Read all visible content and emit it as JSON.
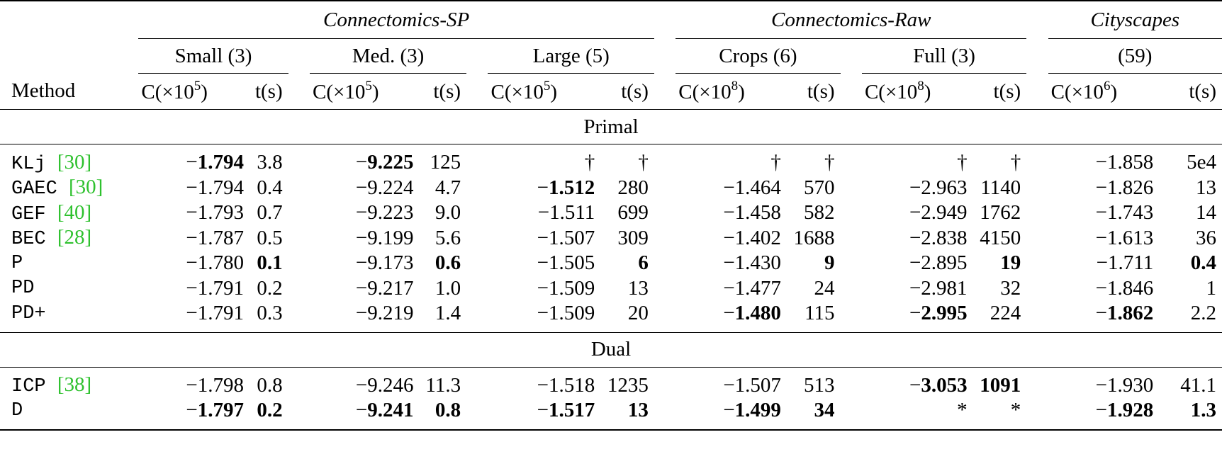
{
  "header": {
    "groups": [
      "Connectomics-SP",
      "Connectomics-Raw",
      "Cityscapes"
    ],
    "subgroups": [
      "Small (3)",
      "Med. (3)",
      "Large (5)",
      "Crops (6)",
      "Full (3)",
      "(59)"
    ],
    "method_label": "Method",
    "cost_prefix": "C(×10",
    "cost_suffix": ")",
    "exponents": [
      "5",
      "5",
      "5",
      "8",
      "8",
      "6"
    ],
    "time_label": "t(s)"
  },
  "sections": {
    "primal": "Primal",
    "dual": "Dual"
  },
  "primal_rows": [
    {
      "method": "KLj ",
      "cite": "[30]",
      "cells": [
        {
          "v": "−1.794",
          "b": "partial"
        },
        {
          "v": "3.8",
          "b": "no"
        },
        {
          "v": "−9.225",
          "b": "partial"
        },
        {
          "v": "125",
          "b": "no"
        },
        {
          "v": "†",
          "b": "no"
        },
        {
          "v": "†",
          "b": "no"
        },
        {
          "v": "†",
          "b": "no"
        },
        {
          "v": "†",
          "b": "no"
        },
        {
          "v": "†",
          "b": "no"
        },
        {
          "v": "†",
          "b": "no"
        },
        {
          "v": "−1.858",
          "b": "no"
        },
        {
          "v": "5e4",
          "b": "no"
        }
      ]
    },
    {
      "method": "GAEC ",
      "cite": "[30]",
      "cells": [
        {
          "v": "−1.794",
          "b": "no"
        },
        {
          "v": "0.4",
          "b": "no"
        },
        {
          "v": "−9.224",
          "b": "no"
        },
        {
          "v": "4.7",
          "b": "no"
        },
        {
          "v": "−1.512",
          "b": "partial"
        },
        {
          "v": "280",
          "b": "no"
        },
        {
          "v": "−1.464",
          "b": "no"
        },
        {
          "v": "570",
          "b": "no"
        },
        {
          "v": "−2.963",
          "b": "no"
        },
        {
          "v": "1140",
          "b": "no"
        },
        {
          "v": "−1.826",
          "b": "no"
        },
        {
          "v": "13",
          "b": "no"
        }
      ]
    },
    {
      "method": "GEF ",
      "cite": "[40]",
      "cells": [
        {
          "v": "−1.793",
          "b": "no"
        },
        {
          "v": "0.7",
          "b": "no"
        },
        {
          "v": "−9.223",
          "b": "no"
        },
        {
          "v": "9.0",
          "b": "no"
        },
        {
          "v": "−1.511",
          "b": "no"
        },
        {
          "v": "699",
          "b": "no"
        },
        {
          "v": "−1.458",
          "b": "no"
        },
        {
          "v": "582",
          "b": "no"
        },
        {
          "v": "−2.949",
          "b": "no"
        },
        {
          "v": "1762",
          "b": "no"
        },
        {
          "v": "−1.743",
          "b": "no"
        },
        {
          "v": "14",
          "b": "no"
        }
      ]
    },
    {
      "method": "BEC ",
      "cite": "[28]",
      "cells": [
        {
          "v": "−1.787",
          "b": "no"
        },
        {
          "v": "0.5",
          "b": "no"
        },
        {
          "v": "−9.199",
          "b": "no"
        },
        {
          "v": "5.6",
          "b": "no"
        },
        {
          "v": "−1.507",
          "b": "no"
        },
        {
          "v": "309",
          "b": "no"
        },
        {
          "v": "−1.402",
          "b": "no"
        },
        {
          "v": "1688",
          "b": "no"
        },
        {
          "v": "−2.838",
          "b": "no"
        },
        {
          "v": "4150",
          "b": "no"
        },
        {
          "v": "−1.613",
          "b": "no"
        },
        {
          "v": "36",
          "b": "no"
        }
      ]
    },
    {
      "method": "P",
      "cite": "",
      "cells": [
        {
          "v": "−1.780",
          "b": "no"
        },
        {
          "v": "0.1",
          "b": "full"
        },
        {
          "v": "−9.173",
          "b": "no"
        },
        {
          "v": "0.6",
          "b": "full"
        },
        {
          "v": "−1.505",
          "b": "no"
        },
        {
          "v": "6",
          "b": "full"
        },
        {
          "v": "−1.430",
          "b": "no"
        },
        {
          "v": "9",
          "b": "full"
        },
        {
          "v": "−2.895",
          "b": "no"
        },
        {
          "v": "19",
          "b": "full"
        },
        {
          "v": "−1.711",
          "b": "no"
        },
        {
          "v": "0.4",
          "b": "full"
        }
      ]
    },
    {
      "method": "PD",
      "cite": "",
      "cells": [
        {
          "v": "−1.791",
          "b": "no"
        },
        {
          "v": "0.2",
          "b": "no"
        },
        {
          "v": "−9.217",
          "b": "no"
        },
        {
          "v": "1.0",
          "b": "no"
        },
        {
          "v": "−1.509",
          "b": "no"
        },
        {
          "v": "13",
          "b": "no"
        },
        {
          "v": "−1.477",
          "b": "no"
        },
        {
          "v": "24",
          "b": "no"
        },
        {
          "v": "−2.981",
          "b": "no"
        },
        {
          "v": "32",
          "b": "no"
        },
        {
          "v": "−1.846",
          "b": "no"
        },
        {
          "v": "1",
          "b": "no"
        }
      ]
    },
    {
      "method": "PD+",
      "cite": "",
      "cells": [
        {
          "v": "−1.791",
          "b": "no"
        },
        {
          "v": "0.3",
          "b": "no"
        },
        {
          "v": "−9.219",
          "b": "no"
        },
        {
          "v": "1.4",
          "b": "no"
        },
        {
          "v": "−1.509",
          "b": "no"
        },
        {
          "v": "20",
          "b": "no"
        },
        {
          "v": "−1.480",
          "b": "partial"
        },
        {
          "v": "115",
          "b": "no"
        },
        {
          "v": "−2.995",
          "b": "partial"
        },
        {
          "v": "224",
          "b": "no"
        },
        {
          "v": "−1.862",
          "b": "partial"
        },
        {
          "v": "2.2",
          "b": "no"
        }
      ]
    }
  ],
  "dual_rows": [
    {
      "method": "ICP ",
      "cite": "[38]",
      "cells": [
        {
          "v": "−1.798",
          "b": "no"
        },
        {
          "v": "0.8",
          "b": "no"
        },
        {
          "v": "−9.246",
          "b": "no"
        },
        {
          "v": "11.3",
          "b": "no"
        },
        {
          "v": "−1.518",
          "b": "no"
        },
        {
          "v": "1235",
          "b": "no"
        },
        {
          "v": "−1.507",
          "b": "no"
        },
        {
          "v": "513",
          "b": "no"
        },
        {
          "v": "−3.053",
          "b": "partial"
        },
        {
          "v": "1091",
          "b": "full"
        },
        {
          "v": "−1.930",
          "b": "no"
        },
        {
          "v": "41.1",
          "b": "no"
        }
      ]
    },
    {
      "method": "D",
      "cite": "",
      "cells": [
        {
          "v": "−1.797",
          "b": "partial"
        },
        {
          "v": "0.2",
          "b": "full"
        },
        {
          "v": "−9.241",
          "b": "partial"
        },
        {
          "v": "0.8",
          "b": "full"
        },
        {
          "v": "−1.517",
          "b": "partial"
        },
        {
          "v": "13",
          "b": "full"
        },
        {
          "v": "−1.499",
          "b": "partial"
        },
        {
          "v": "34",
          "b": "full"
        },
        {
          "v": "*",
          "b": "no"
        },
        {
          "v": "*",
          "b": "no"
        },
        {
          "v": "−1.928",
          "b": "partial"
        },
        {
          "v": "1.3",
          "b": "full"
        }
      ]
    }
  ]
}
